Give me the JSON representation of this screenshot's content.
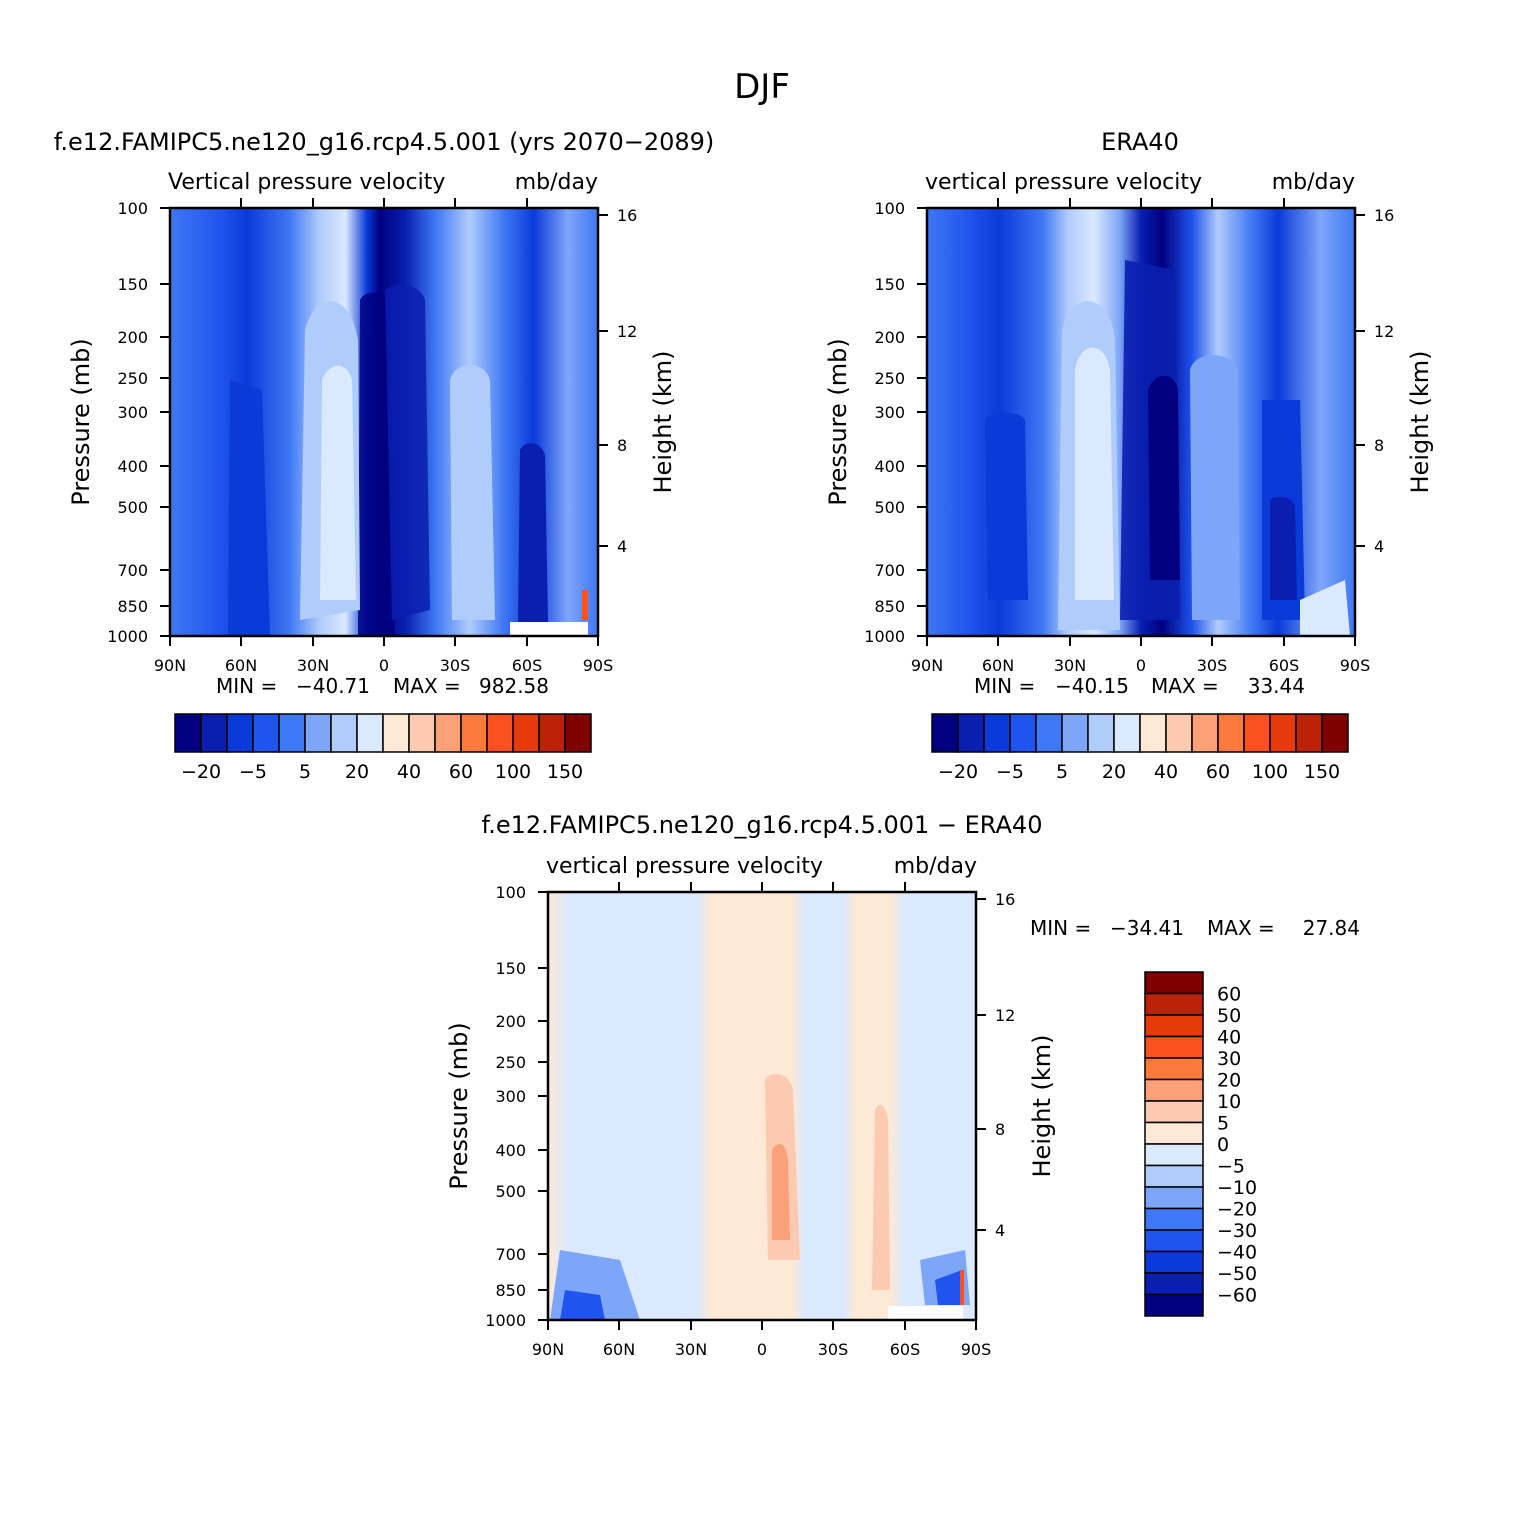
{
  "figure": {
    "title": "DJF"
  },
  "colors": {
    "abs_scale": [
      "#000080",
      "#0a1fb0",
      "#0a3ad8",
      "#1f54ee",
      "#3f78f5",
      "#7ea6f8",
      "#b0ccfb",
      "#dae9fd",
      "#fde9d6",
      "#fccab0",
      "#fba179",
      "#fd7a3e",
      "#fb5120",
      "#e63a0a",
      "#bb2208",
      "#800000"
    ],
    "diff_scale": [
      "#000080",
      "#0a1fb0",
      "#0a3ad8",
      "#1f54ee",
      "#3f78f5",
      "#7ea6f8",
      "#b0ccfb",
      "#dae9fd",
      "#fde9d6",
      "#fccab0",
      "#fba179",
      "#fd7a3e",
      "#fb5120",
      "#e63a0a",
      "#bb2208",
      "#800000"
    ]
  },
  "chart_data": [
    {
      "id": "model",
      "type": "heatmap",
      "title": "f.e12.FAMIPC5.ne120_g16.rcp4.5.001 (yrs 2070−2089)",
      "subtitle_left": "Vertical pressure velocity",
      "subtitle_right": "mb/day",
      "ylabel": "Pressure (mb)",
      "ylabel_right": "Height (km)",
      "x_ticks": [
        "90N",
        "60N",
        "30N",
        "0",
        "30S",
        "60S",
        "90S"
      ],
      "y_ticks": [
        "100",
        "150",
        "200",
        "250",
        "300",
        "400",
        "500",
        "700",
        "850",
        "1000"
      ],
      "y_right_ticks": [
        "16",
        "12",
        "8",
        "4"
      ],
      "xlim": [
        90,
        -90
      ],
      "ylim": [
        1000,
        100
      ],
      "stats": {
        "min_label": "MIN =",
        "min": "−40.71",
        "max_label": "MAX =",
        "max": "982.58"
      },
      "colorbar_labels": [
        "−20",
        "−5",
        "5",
        "20",
        "40",
        "60",
        "100",
        "150"
      ]
    },
    {
      "id": "obs",
      "type": "heatmap",
      "title": "ERA40",
      "subtitle_left": "vertical pressure velocity",
      "subtitle_right": "mb/day",
      "ylabel": "Pressure (mb)",
      "ylabel_right": "Height (km)",
      "x_ticks": [
        "90N",
        "60N",
        "30N",
        "0",
        "30S",
        "60S",
        "90S"
      ],
      "y_ticks": [
        "100",
        "150",
        "200",
        "250",
        "300",
        "400",
        "500",
        "700",
        "850",
        "1000"
      ],
      "y_right_ticks": [
        "16",
        "12",
        "8",
        "4"
      ],
      "xlim": [
        90,
        -90
      ],
      "ylim": [
        1000,
        100
      ],
      "stats": {
        "min_label": "MIN =",
        "min": "−40.15",
        "max_label": "MAX =",
        "max": "33.44"
      },
      "colorbar_labels": [
        "−20",
        "−5",
        "5",
        "20",
        "40",
        "60",
        "100",
        "150"
      ]
    },
    {
      "id": "diff",
      "type": "heatmap",
      "title": "f.e12.FAMIPC5.ne120_g16.rcp4.5.001 − ERA40",
      "subtitle_left": "vertical pressure velocity",
      "subtitle_right": "mb/day",
      "ylabel": "Pressure (mb)",
      "ylabel_right": "Height (km)",
      "x_ticks": [
        "90N",
        "60N",
        "30N",
        "0",
        "30S",
        "60S",
        "90S"
      ],
      "y_ticks": [
        "100",
        "150",
        "200",
        "250",
        "300",
        "400",
        "500",
        "700",
        "850",
        "1000"
      ],
      "y_right_ticks": [
        "16",
        "12",
        "8",
        "4"
      ],
      "xlim": [
        90,
        -90
      ],
      "ylim": [
        1000,
        100
      ],
      "stats": {
        "min_label": "MIN =",
        "min": "−34.41",
        "max_label": "MAX =",
        "max": "27.84"
      },
      "colorbar_labels": [
        "60",
        "50",
        "40",
        "30",
        "20",
        "10",
        "5",
        "0",
        "−5",
        "−10",
        "−20",
        "−30",
        "−40",
        "−50",
        "−60"
      ]
    }
  ]
}
